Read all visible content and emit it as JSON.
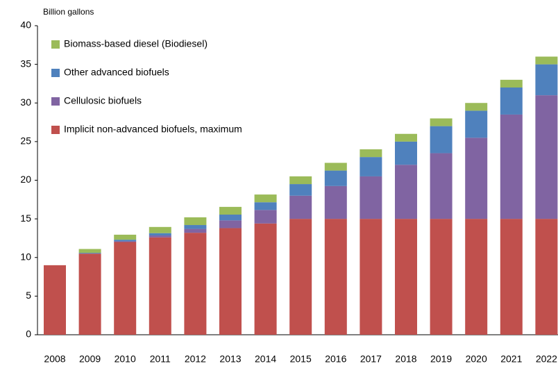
{
  "chart_data": {
    "type": "stacked_bar",
    "y_axis_label": "Billion  gallons",
    "categories": [
      "2008",
      "2009",
      "2010",
      "2011",
      "2012",
      "2013",
      "2014",
      "2015",
      "2016",
      "2017",
      "2018",
      "2019",
      "2020",
      "2021",
      "2022"
    ],
    "series": [
      {
        "name": "Implicit non-advanced biofuels, maximum",
        "color": "#c0504d",
        "values": [
          9,
          10.5,
          12,
          12.6,
          13.2,
          13.8,
          14.4,
          15,
          15,
          15,
          15,
          15,
          15,
          15,
          15
        ]
      },
      {
        "name": "Cellulosic biofuels",
        "color": "#8064a2",
        "values": [
          0,
          0,
          0.1,
          0.25,
          0.5,
          1,
          1.75,
          3,
          4.25,
          5.5,
          7,
          8.5,
          10.5,
          13.5,
          16
        ]
      },
      {
        "name": "Other advanced biofuels",
        "color": "#4f81bd",
        "values": [
          0,
          0.1,
          0.2,
          0.3,
          0.5,
          0.75,
          1,
          1.5,
          2,
          2.5,
          3,
          3.5,
          3.5,
          3.5,
          4
        ]
      },
      {
        "name": "Biomass-based diesel (Biodiesel)",
        "color": "#9bbb59",
        "values": [
          0,
          0.5,
          0.65,
          0.8,
          1,
          1,
          1,
          1,
          1,
          1,
          1,
          1,
          1,
          1,
          1
        ]
      }
    ],
    "ylim": [
      0,
      40
    ],
    "yticks": [
      0,
      5,
      10,
      15,
      20,
      25,
      30,
      35,
      40
    ],
    "grid": false,
    "legend": "top-left"
  }
}
